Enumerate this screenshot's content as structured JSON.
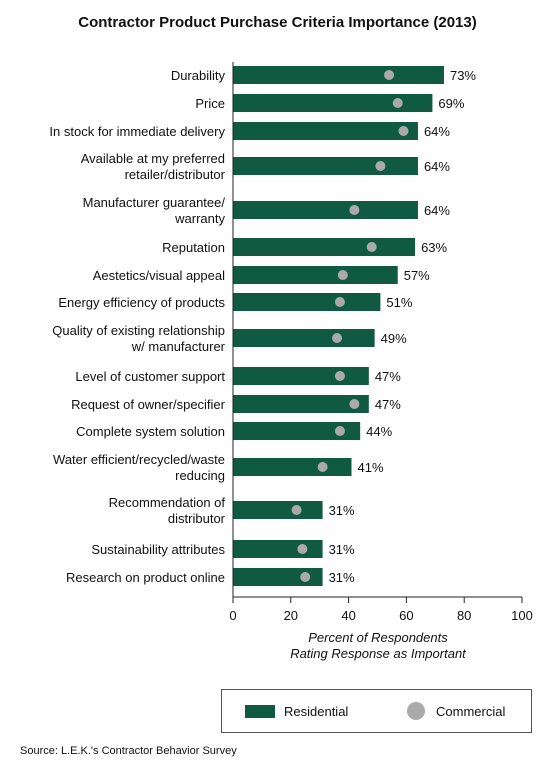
{
  "chart_data": {
    "type": "bar",
    "orientation": "horizontal",
    "title": "Contractor Product Purchase Criteria Importance (2013)",
    "xlabel": [
      "Percent of Respondents",
      "Rating Response as Important"
    ],
    "xlim": [
      0,
      100
    ],
    "xticks": [
      0,
      20,
      40,
      60,
      80,
      100
    ],
    "categories": [
      [
        "Durability"
      ],
      [
        "Price"
      ],
      [
        "In stock for immediate delivery"
      ],
      [
        "Available at my preferred",
        "retailer/distributor"
      ],
      [
        "Manufacturer guarantee/",
        "warranty"
      ],
      [
        "Reputation"
      ],
      [
        "Aestetics/visual appeal"
      ],
      [
        "Energy efficiency of products"
      ],
      [
        "Quality of existing relationship",
        "w/ manufacturer"
      ],
      [
        "Level of customer support"
      ],
      [
        "Request of owner/specifier"
      ],
      [
        "Complete system solution"
      ],
      [
        "Water efficient/recycled/waste",
        "reducing"
      ],
      [
        "Recommendation of",
        "distributor"
      ],
      [
        "Sustainability attributes"
      ],
      [
        "Research on product online"
      ]
    ],
    "series": [
      {
        "name": "Residential",
        "kind": "bar",
        "color": "#0f5a40",
        "values": [
          73,
          69,
          64,
          64,
          64,
          63,
          57,
          51,
          49,
          47,
          47,
          44,
          41,
          31,
          31,
          31
        ],
        "labels": [
          "73%",
          "69%",
          "64%",
          "64%",
          "64%",
          "63%",
          "57%",
          "51%",
          "49%",
          "47%",
          "47%",
          "44%",
          "41%",
          "31%",
          "31%",
          "31%"
        ]
      },
      {
        "name": "Commercial",
        "kind": "dot",
        "color": "#aaaaaa",
        "values": [
          54,
          57,
          59,
          51,
          42,
          48,
          38,
          37,
          36,
          37,
          42,
          37,
          31,
          22,
          24,
          25
        ]
      }
    ],
    "legend_position": "bottom",
    "grid": false
  },
  "legend": {
    "residential": "Residential",
    "commercial": "Commercial"
  },
  "source": "Source: L.E.K.'s Contractor Behavior Survey"
}
